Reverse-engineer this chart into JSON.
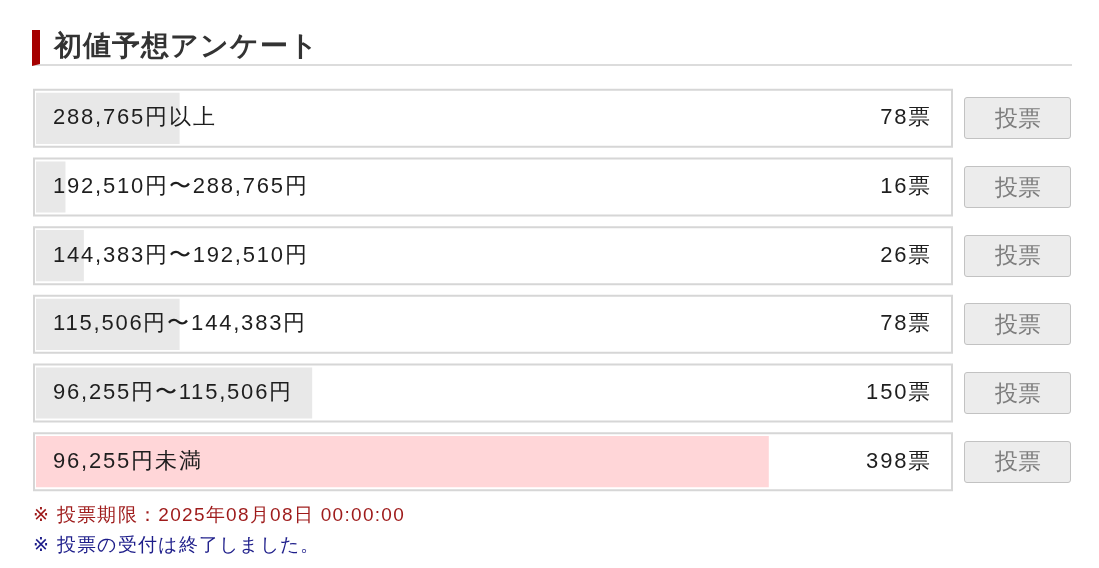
{
  "chart_data": {
    "type": "bar",
    "orientation": "horizontal",
    "title": "初値予想アンケート",
    "categories": [
      "288,765円以上",
      "192,510円〜288,765円",
      "144,383円〜192,510円",
      "115,506円〜144,383円",
      "96,255円〜115,506円",
      "96,255円未満"
    ],
    "values": [
      78,
      16,
      26,
      78,
      150,
      398
    ],
    "colors": [
      "#e8e8e8",
      "#e8e8e8",
      "#e8e8e8",
      "#e8e8e8",
      "#e8e8e8",
      "#ffd6d8"
    ],
    "value_labels": [
      "78票",
      "16票",
      "26票",
      "78票",
      "150票",
      "398票"
    ],
    "annotations": [
      "投票",
      "投票",
      "投票",
      "投票",
      "投票",
      "投票",
      "※ 投票期限：2025年08月08日 00:00:00",
      "※ 投票の受付は終了しました。"
    ]
  }
}
